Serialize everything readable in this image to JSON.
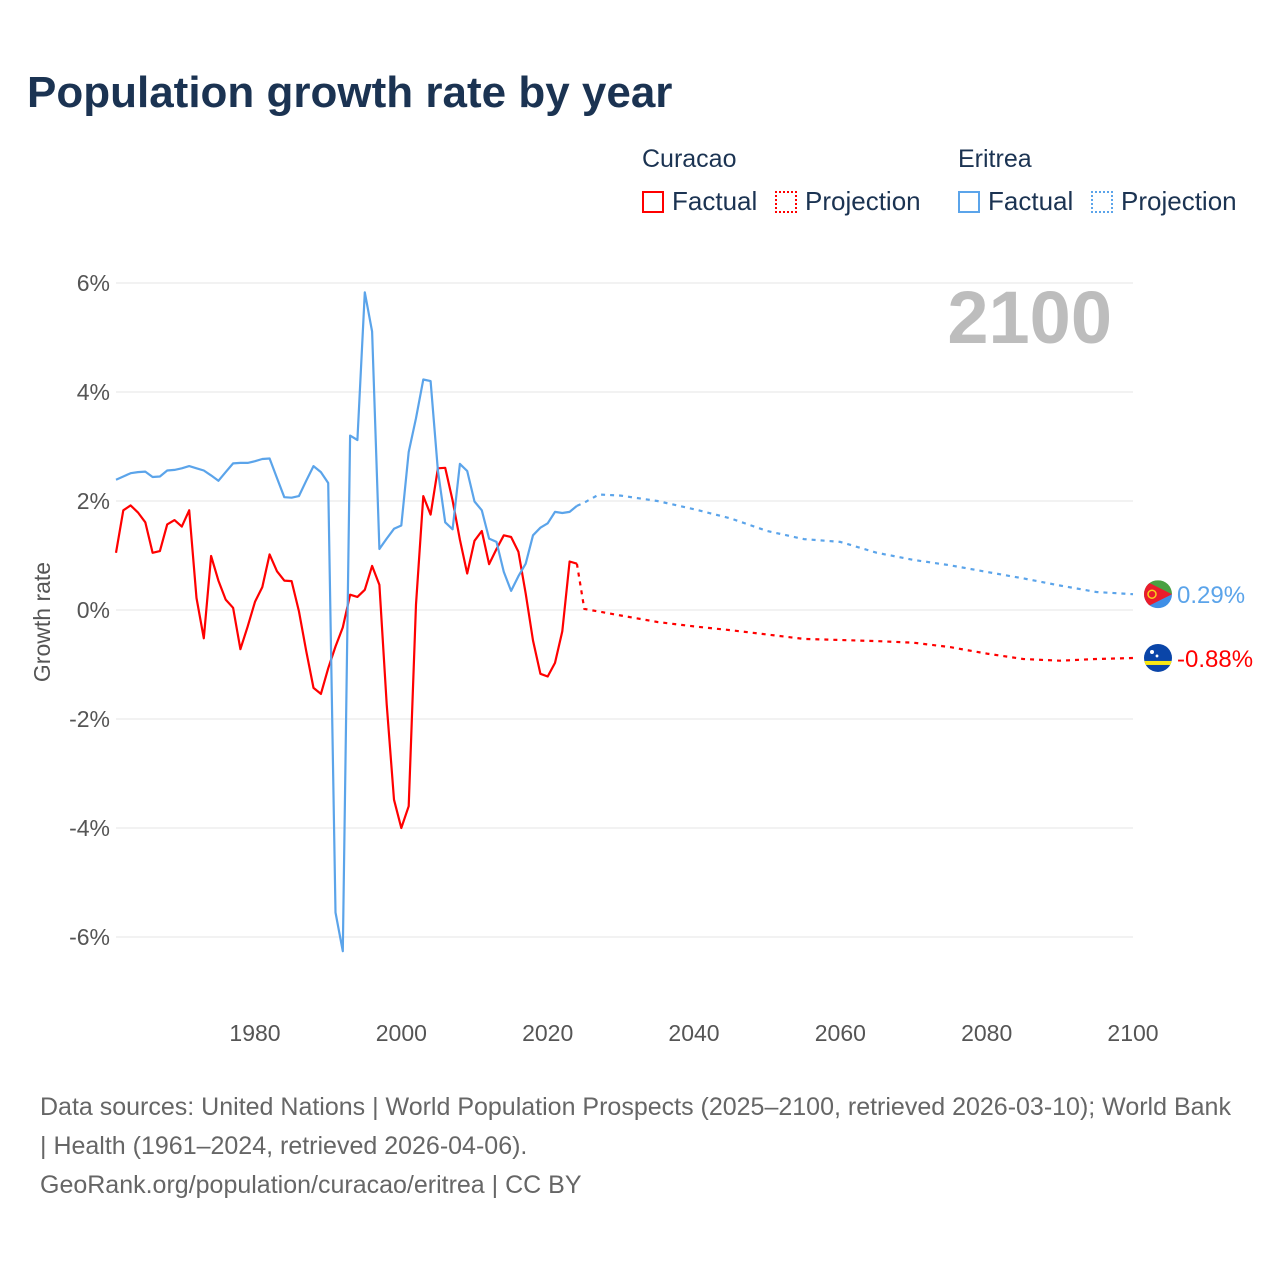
{
  "title": "Population growth rate by year",
  "legend": {
    "groups": [
      {
        "name": "Curacao",
        "factual": "Factual",
        "projection": "Projection",
        "color": "#ff0000"
      },
      {
        "name": "Eritrea",
        "factual": "Factual",
        "projection": "Projection",
        "color": "#5ba4ea"
      }
    ]
  },
  "year_display": "2100",
  "footer": {
    "sources": "Data sources: United Nations | World Population Prospects (2025–2100, retrieved 2026-03-10); World Bank | Health (1961–2024, retrieved 2026-04-06).",
    "credit": "GeoRank.org/population/curacao/eritrea | CC BY"
  },
  "chart_data": {
    "type": "line",
    "title": "Population growth rate by year",
    "xlabel": "",
    "ylabel": "Growth rate",
    "xlim": [
      1961,
      2100
    ],
    "ylim": [
      -6.8,
      6.3
    ],
    "xticks": [
      1980,
      2000,
      2020,
      2040,
      2060,
      2080,
      2100
    ],
    "xtick_labels": [
      "1980",
      "2000",
      "2020",
      "2040",
      "2060",
      "2080",
      "2100"
    ],
    "yticks": [
      6,
      4,
      2,
      0,
      -2,
      -4,
      -6
    ],
    "ytick_labels": [
      "6%",
      "4%",
      "2%",
      "0%",
      "-2%",
      "-4%",
      "-6%"
    ],
    "grid": true,
    "series": [
      {
        "name": "Curacao",
        "kind": "factual",
        "color": "#ff0000",
        "start_year": 1961,
        "values": [
          1.05,
          1.83,
          1.92,
          1.79,
          1.61,
          1.05,
          1.08,
          1.57,
          1.65,
          1.53,
          1.83,
          0.22,
          -0.52,
          0.99,
          0.54,
          0.19,
          0.04,
          -0.72,
          -0.3,
          0.15,
          0.42,
          1.02,
          0.71,
          0.54,
          0.53,
          -0.02,
          -0.75,
          -1.43,
          -1.54,
          -1.07,
          -0.67,
          -0.32,
          0.28,
          0.24,
          0.37,
          0.81,
          0.46,
          -1.73,
          -3.48,
          -4.0,
          -3.6,
          0.1,
          2.09,
          1.75,
          2.6,
          2.61,
          2.01,
          1.29,
          0.67,
          1.27,
          1.45,
          0.84,
          1.12,
          1.37,
          1.34,
          1.07,
          0.3,
          -0.56,
          -1.17,
          -1.22,
          -0.97,
          -0.39,
          0.89,
          0.85
        ]
      },
      {
        "name": "Curacao",
        "kind": "projection",
        "color": "#ff0000",
        "x": [
          2024,
          2025,
          2030,
          2035,
          2040,
          2045,
          2050,
          2055,
          2060,
          2065,
          2070,
          2075,
          2080,
          2085,
          2090,
          2095,
          2100
        ],
        "values": [
          0.85,
          0.02,
          -0.1,
          -0.22,
          -0.3,
          -0.37,
          -0.45,
          -0.53,
          -0.55,
          -0.57,
          -0.6,
          -0.68,
          -0.8,
          -0.9,
          -0.93,
          -0.9,
          -0.88
        ]
      },
      {
        "name": "Eritrea",
        "kind": "factual",
        "color": "#5ba4ea",
        "start_year": 1961,
        "values": [
          2.39,
          2.45,
          2.51,
          2.53,
          2.54,
          2.44,
          2.45,
          2.56,
          2.57,
          2.6,
          2.64,
          2.6,
          2.56,
          2.47,
          2.37,
          2.53,
          2.69,
          2.7,
          2.7,
          2.73,
          2.77,
          2.78,
          2.42,
          2.07,
          2.06,
          2.09,
          2.37,
          2.64,
          2.53,
          2.33,
          -5.55,
          -6.26,
          3.2,
          3.12,
          5.83,
          5.11,
          1.12,
          1.31,
          1.49,
          1.55,
          2.9,
          3.52,
          4.23,
          4.2,
          2.56,
          1.61,
          1.48,
          2.68,
          2.55,
          1.99,
          1.83,
          1.31,
          1.25,
          0.7,
          0.35,
          0.62,
          0.85,
          1.37,
          1.51,
          1.59,
          1.8,
          1.78,
          1.8,
          1.91
        ]
      },
      {
        "name": "Eritrea",
        "kind": "projection",
        "color": "#5ba4ea",
        "x": [
          2024,
          2025,
          2027,
          2030,
          2035,
          2040,
          2045,
          2050,
          2055,
          2060,
          2065,
          2070,
          2075,
          2080,
          2085,
          2090,
          2095,
          2100
        ],
        "values": [
          1.91,
          1.97,
          2.12,
          2.1,
          2.0,
          1.85,
          1.68,
          1.45,
          1.3,
          1.25,
          1.05,
          0.92,
          0.82,
          0.7,
          0.58,
          0.45,
          0.33,
          0.29
        ]
      }
    ],
    "end_labels": [
      {
        "country": "Eritrea",
        "text": "0.29%",
        "value": 0.29,
        "color": "#5ba4ea"
      },
      {
        "country": "Curacao",
        "text": "-0.88%",
        "value": -0.88,
        "color": "#ff0000"
      }
    ]
  }
}
